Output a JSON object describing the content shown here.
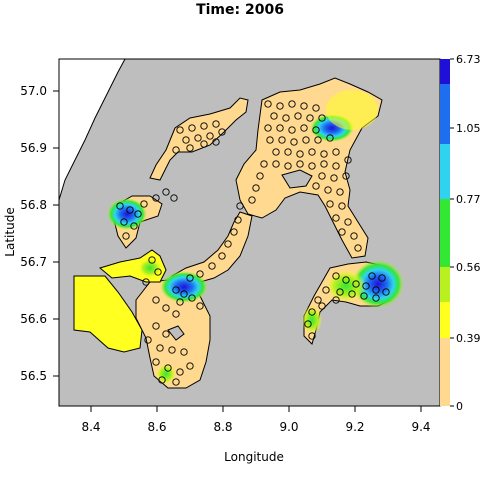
{
  "map": {
    "title": "Time: 2006",
    "xlabel": "Longitude",
    "ylabel": "Latitude",
    "xticks": [
      "8.4",
      "8.6",
      "8.8",
      "9.0",
      "9.2",
      "9.4"
    ],
    "yticks": [
      "57.0",
      "56.9",
      "56.8",
      "56.7",
      "56.6",
      "56.5"
    ],
    "colorbar": {
      "labels": [
        "6.73",
        "1.05",
        "0.77",
        "0.56",
        "0.39",
        "0"
      ],
      "colors": [
        "#1f10d8",
        "#1e6ef0",
        "#2fd3f0",
        "#33e833",
        "#b8f020",
        "#ffff20",
        "#ffd990"
      ]
    },
    "colors": {
      "land": "#bebebe",
      "water_low": "#ffd990",
      "water_mid": "#ffff20"
    }
  }
}
